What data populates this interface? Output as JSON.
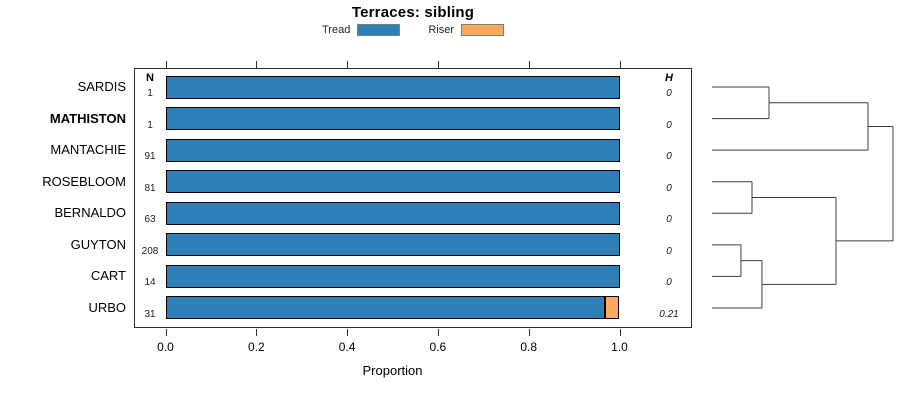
{
  "title": "Terraces: sibling",
  "legend": {
    "items": [
      {
        "label": "Tread",
        "color": "#2e7fb8"
      },
      {
        "label": "Riser",
        "color": "#fca85f"
      }
    ]
  },
  "columns": {
    "n_header": "N",
    "h_header": "H"
  },
  "chart_data": {
    "type": "bar",
    "orientation": "horizontal",
    "stacked": true,
    "title": "Terraces: sibling",
    "xlabel": "Proportion",
    "xlim": [
      0.0,
      1.0
    ],
    "xtick_labels": [
      "0.0",
      "0.2",
      "0.4",
      "0.6",
      "0.8",
      "1.0"
    ],
    "xtick_values": [
      0.0,
      0.2,
      0.4,
      0.6,
      0.8,
      1.0
    ],
    "grid": false,
    "legend_position": "top",
    "series_names": [
      "Tread",
      "Riser"
    ],
    "rows": [
      {
        "label": "SARDIS",
        "bold": false,
        "n": "1",
        "h": "0",
        "tread": 1.0,
        "riser": 0.0
      },
      {
        "label": "MATHISTON",
        "bold": true,
        "n": "1",
        "h": "0",
        "tread": 1.0,
        "riser": 0.0
      },
      {
        "label": "MANTACHIE",
        "bold": false,
        "n": "91",
        "h": "0",
        "tread": 1.0,
        "riser": 0.0
      },
      {
        "label": "ROSEBLOOM",
        "bold": false,
        "n": "81",
        "h": "0",
        "tread": 1.0,
        "riser": 0.0
      },
      {
        "label": "BERNALDO",
        "bold": false,
        "n": "63",
        "h": "0",
        "tread": 1.0,
        "riser": 0.0
      },
      {
        "label": "GUYTON",
        "bold": false,
        "n": "208",
        "h": "0",
        "tread": 1.0,
        "riser": 0.0
      },
      {
        "label": "CART",
        "bold": false,
        "n": "14",
        "h": "0",
        "tread": 1.0,
        "riser": 0.0
      },
      {
        "label": "URBO",
        "bold": false,
        "n": "31",
        "h": "0.21",
        "tread": 0.968,
        "riser": 0.032
      }
    ],
    "dendrogram": {
      "leaf_order": [
        "SARDIS",
        "MATHISTON",
        "MANTACHIE",
        "ROSEBLOOM",
        "BERNALDO",
        "GUYTON",
        "CART",
        "URBO"
      ],
      "merges": [
        {
          "children": [
            "SARDIS",
            "MATHISTON"
          ],
          "height": 0.315
        },
        {
          "children": [
            "#0",
            "MANTACHIE"
          ],
          "height": 0.862
        },
        {
          "children": [
            "ROSEBLOOM",
            "BERNALDO"
          ],
          "height": 0.221
        },
        {
          "children": [
            "GUYTON",
            "CART"
          ],
          "height": 0.16
        },
        {
          "children": [
            "#3",
            "URBO"
          ],
          "height": 0.276
        },
        {
          "children": [
            "#2",
            "#4"
          ],
          "height": 0.685
        },
        {
          "children": [
            "#1",
            "#5"
          ],
          "height": 1.0
        }
      ]
    }
  },
  "colors": {
    "tread": "#2e7fb8",
    "riser": "#fca85f",
    "bar_border": "#000000",
    "box_border": "#2b2b2b",
    "dendrogram_line": "#3d3d3d"
  }
}
